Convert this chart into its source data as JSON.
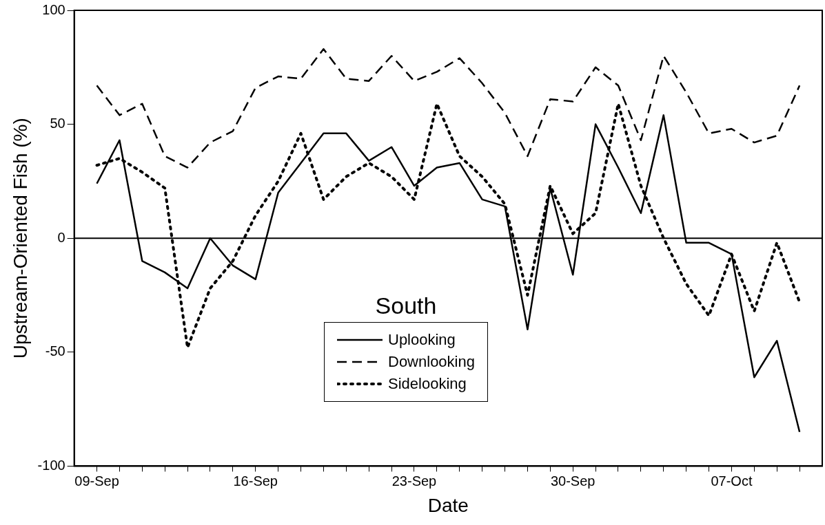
{
  "chart_data": {
    "type": "line",
    "xlabel": "Date",
    "ylabel": "Upstream-Oriented Fish (%)",
    "legend_title": "South",
    "legend": "bottom",
    "x": [
      "--09-09",
      "--09-10",
      "--09-11",
      "--09-12",
      "--09-13",
      "--09-14",
      "--09-15",
      "--09-16",
      "--09-17",
      "--09-18",
      "--09-19",
      "--09-20",
      "--09-21",
      "--09-22",
      "--09-23",
      "--09-24",
      "--09-25",
      "--09-26",
      "--09-27",
      "--09-28",
      "--09-29",
      "--09-30",
      "--10-01",
      "--10-02",
      "--10-03",
      "--10-04",
      "--10-05",
      "--10-06",
      "--10-07",
      "--10-08",
      "--10-09",
      "--10-10"
    ],
    "series": [
      {
        "name": "Uplooking",
        "color": "#000000",
        "line_style": "solid",
        "values": [
          24,
          43,
          -10,
          -15,
          -22,
          0,
          -12,
          -18,
          20,
          33,
          46,
          46,
          34,
          40,
          23,
          31,
          33,
          17,
          14,
          -40,
          22,
          -16,
          50,
          31,
          11,
          54,
          -2,
          -2,
          -7,
          -61,
          -45,
          -85
        ]
      },
      {
        "name": "Downlooking",
        "color": "#000000",
        "line_style": "dashed",
        "values": [
          67,
          54,
          59,
          36,
          31,
          42,
          47,
          66,
          71,
          70,
          83,
          70,
          69,
          80,
          69,
          73,
          79,
          68,
          55,
          36,
          61,
          60,
          75,
          67,
          43,
          80,
          64,
          46,
          48,
          42,
          45,
          67
        ]
      },
      {
        "name": "Sidelooking",
        "color": "#000000",
        "line_style": "dotted",
        "values": [
          32,
          35,
          29,
          22,
          -48,
          -22,
          -10,
          10,
          25,
          46,
          17,
          27,
          33,
          27,
          17,
          59,
          36,
          27,
          15,
          -25,
          23,
          2,
          11,
          59,
          23,
          0,
          -20,
          -34,
          -7,
          -32,
          -2,
          -28
        ]
      }
    ],
    "xlim": [
      "--09-08",
      "--10-11"
    ],
    "xticks": [
      {
        "value": "--09-09",
        "label": "09-Sep"
      },
      {
        "value": "--09-10",
        "label": null
      },
      {
        "value": "--09-11",
        "label": null
      },
      {
        "value": "--09-12",
        "label": null
      },
      {
        "value": "--09-13",
        "label": null
      },
      {
        "value": "--09-14",
        "label": null
      },
      {
        "value": "--09-15",
        "label": null
      },
      {
        "value": "--09-16",
        "label": "16-Sep"
      },
      {
        "value": "--09-17",
        "label": null
      },
      {
        "value": "--09-18",
        "label": null
      },
      {
        "value": "--09-19",
        "label": null
      },
      {
        "value": "--09-20",
        "label": null
      },
      {
        "value": "--09-21",
        "label": null
      },
      {
        "value": "--09-22",
        "label": null
      },
      {
        "value": "--09-23",
        "label": "23-Sep"
      },
      {
        "value": "--09-24",
        "label": null
      },
      {
        "value": "--09-25",
        "label": null
      },
      {
        "value": "--09-26",
        "label": null
      },
      {
        "value": "--09-27",
        "label": null
      },
      {
        "value": "--09-28",
        "label": null
      },
      {
        "value": "--09-29",
        "label": null
      },
      {
        "value": "--09-30",
        "label": "30-Sep"
      },
      {
        "value": "--10-01",
        "label": null
      },
      {
        "value": "--10-02",
        "label": null
      },
      {
        "value": "--10-03",
        "label": null
      },
      {
        "value": "--10-04",
        "label": null
      },
      {
        "value": "--10-05",
        "label": null
      },
      {
        "value": "--10-06",
        "label": null
      },
      {
        "value": "--10-07",
        "label": "07-Oct"
      },
      {
        "value": "--10-08",
        "label": null
      },
      {
        "value": "--10-09",
        "label": null
      },
      {
        "value": "--10-10",
        "label": null
      }
    ],
    "ylim": [
      -100,
      100
    ],
    "yticks": [
      -100,
      -50,
      0,
      50,
      100
    ],
    "grid": false,
    "marker": "none",
    "ref_lines": [
      {
        "axis": "y",
        "value": 0,
        "color": "#000000"
      }
    ]
  }
}
